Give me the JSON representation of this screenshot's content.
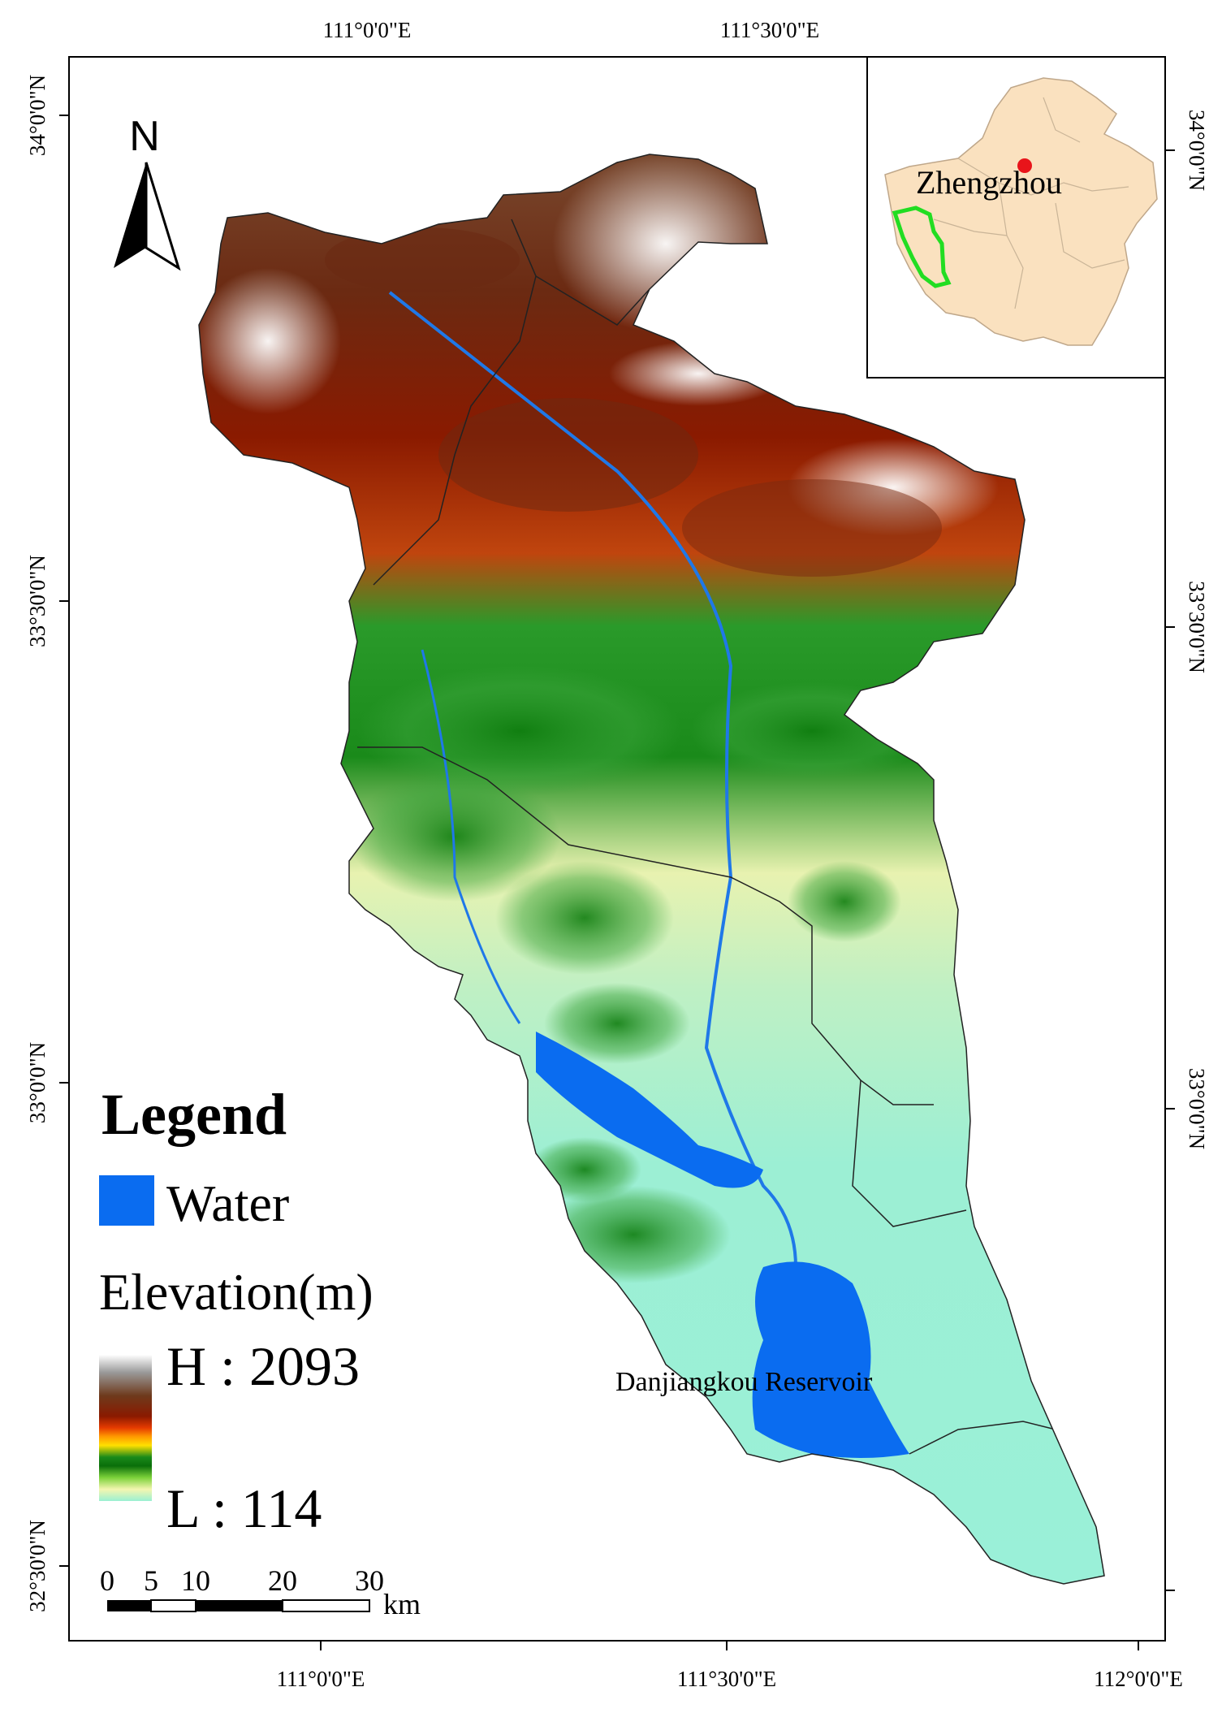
{
  "map": {
    "graticule": {
      "top_labels": [
        "111°0'0\"E",
        "111°30'0\"E"
      ],
      "bottom_labels": [
        "111°0'0\"E",
        "111°30'0\"E",
        "112°0'0\"E"
      ],
      "left_labels": [
        "34°0'0\"N",
        "33°30'0\"N",
        "33°0'0\"N",
        "32°30'0\"N"
      ],
      "right_labels": [
        "34°0'0\"N",
        "33°30'0\"N",
        "33°0'0\"N"
      ]
    },
    "north_arrow": {
      "label": "N"
    },
    "legend": {
      "title": "Legend",
      "water_label": "Water",
      "water_color": "#0a6cf0",
      "elevation_title": "Elevation(m)",
      "high_label": "H : 2093",
      "low_label": "L : 114",
      "ramp_colors": [
        "#ffffff",
        "#8a8a8a",
        "#6e3a1c",
        "#8a1a00",
        "#e63b00",
        "#ff9a00",
        "#ffe000",
        "#1a8a1a",
        "#0a6e0a",
        "#7cd23a",
        "#f4f6b0",
        "#9af0d2"
      ]
    },
    "scale_bar": {
      "ticks": [
        "0",
        "5",
        "10",
        "20",
        "30"
      ],
      "unit": "km"
    },
    "labels": {
      "reservoir": "Danjiangkou Reservoir"
    },
    "inset": {
      "city_label": "Zhengzhou",
      "province_fill": "#fae1bf",
      "study_area_outline": "#22dd22",
      "city_marker_color": "#e8141a"
    }
  }
}
